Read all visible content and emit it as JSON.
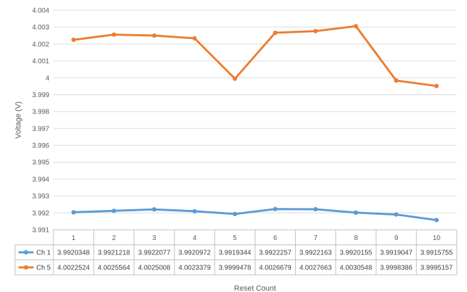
{
  "chart_data": {
    "type": "line",
    "title": "",
    "xlabel": "Reset Count",
    "ylabel": "Voltage (V)",
    "categories": [
      "1",
      "2",
      "3",
      "4",
      "5",
      "6",
      "7",
      "8",
      "9",
      "10"
    ],
    "ylim": [
      3.991,
      4.004
    ],
    "yticks": [
      "3.991",
      "3.992",
      "3.993",
      "3.994",
      "3.995",
      "3.996",
      "3.997",
      "3.998",
      "3.999",
      "4",
      "4.001",
      "4.002",
      "4.003",
      "4.004"
    ],
    "grid": true,
    "legend": "data-table",
    "series": [
      {
        "name": "Ch 1",
        "color": "#5b9bd5",
        "values": [
          3.9920348,
          3.9921218,
          3.9922077,
          3.9920972,
          3.9919344,
          3.9922257,
          3.9922163,
          3.9920155,
          3.9919047,
          3.9915755
        ],
        "labels": [
          "3.9920348",
          "3.9921218",
          "3.9922077",
          "3.9920972",
          "3.9919344",
          "3.9922257",
          "3.9922163",
          "3.9920155",
          "3.9919047",
          "3.9915755"
        ]
      },
      {
        "name": "Ch 5",
        "color": "#ed7d31",
        "values": [
          4.0022524,
          4.0025564,
          4.0025008,
          4.0023379,
          3.9999478,
          4.0026679,
          4.0027663,
          4.0030548,
          3.9998386,
          3.9995157
        ],
        "labels": [
          "4.0022524",
          "4.0025564",
          "4.0025008",
          "4.0023379",
          "3.9999478",
          "4.0026679",
          "4.0027663",
          "4.0030548",
          "3.9998386",
          "3.9995157"
        ]
      }
    ]
  }
}
